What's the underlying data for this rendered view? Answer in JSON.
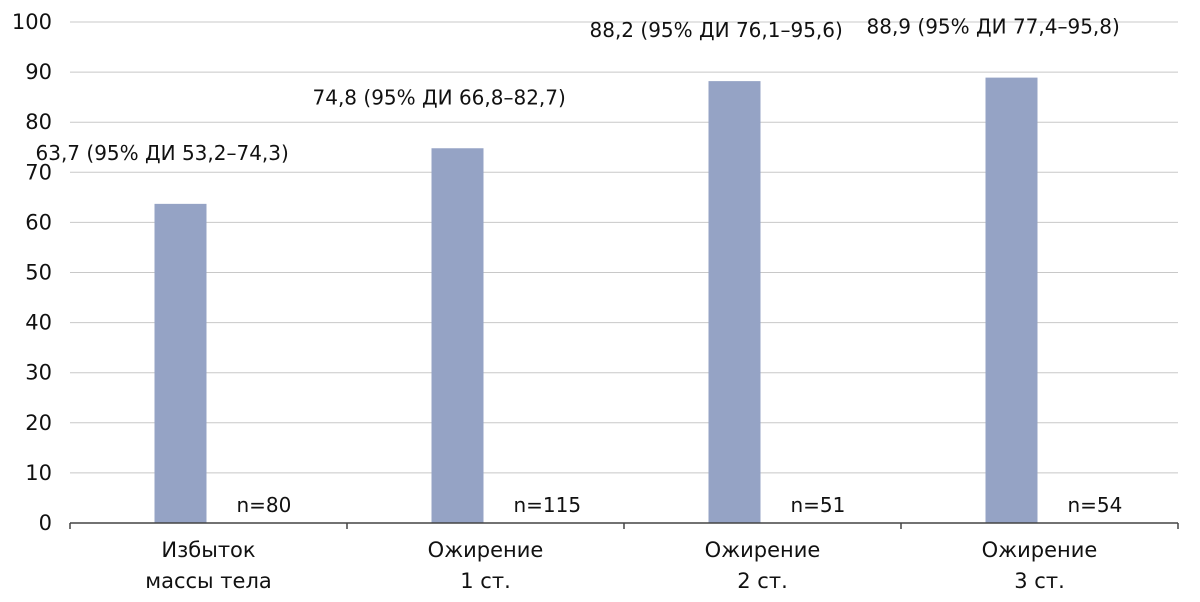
{
  "chart_data": {
    "type": "bar",
    "title": "",
    "xlabel": "",
    "ylabel": "",
    "ylim": [
      0,
      100
    ],
    "yticks": [
      0,
      10,
      20,
      30,
      40,
      50,
      60,
      70,
      80,
      90,
      100
    ],
    "grid": true,
    "legend": "none",
    "bar_color": "#95A3C5",
    "grid_color": "#C8C8C8",
    "axis_color": "#444444",
    "categories": [
      [
        "Избыток",
        "массы тела"
      ],
      [
        "Ожирение",
        "1 ст."
      ],
      [
        "Ожирение",
        "2 ст."
      ],
      [
        "Ожирение",
        "3 ст."
      ]
    ],
    "values": [
      63.7,
      74.8,
      88.2,
      88.9
    ],
    "data_labels": [
      "63,7 (95% ДИ 53,2–74,3)",
      "74,8 (95% ДИ 66,8–82,7)",
      "88,2 (95% ДИ 76,1–95,6)",
      "88,9 (95% ДИ 77,4–95,8)"
    ],
    "n_labels": [
      "n=80",
      "n=115",
      "n=51",
      "n=54"
    ]
  }
}
